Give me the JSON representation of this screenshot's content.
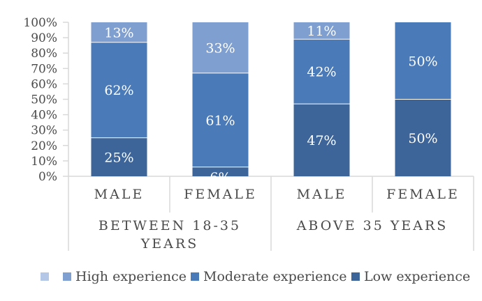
{
  "chart_data": {
    "type": "bar",
    "stacked": true,
    "ylim": [
      0,
      100
    ],
    "y_ticks": [
      "0%",
      "10%",
      "20%",
      "30%",
      "40%",
      "50%",
      "60%",
      "70%",
      "80%",
      "90%",
      "100%"
    ],
    "categories": [
      "MALE",
      "FEMALE",
      "MALE",
      "FEMALE"
    ],
    "groups": [
      {
        "label_lines": [
          "BETWEEN 18-35",
          "YEARS"
        ],
        "categories": [
          0,
          1
        ]
      },
      {
        "label_lines": [
          "ABOVE 35 YEARS"
        ],
        "categories": [
          2,
          3
        ]
      }
    ],
    "series": [
      {
        "name": "Low experience",
        "color": "#3d6599",
        "values": [
          25,
          6,
          47,
          50
        ]
      },
      {
        "name": "Moderate experience",
        "color": "#4a7ab8",
        "values": [
          62,
          61,
          42,
          50
        ]
      },
      {
        "name": "High experience",
        "color": "#7f9fd0",
        "values": [
          13,
          33,
          11,
          0
        ]
      }
    ],
    "value_labels": [
      [
        "25%",
        "6%",
        "47%",
        "50%"
      ],
      [
        "62%",
        "61%",
        "42%",
        "50%"
      ],
      [
        "13%",
        "33%",
        "11%",
        ""
      ]
    ],
    "legend": {
      "placement": "bottom",
      "items": [
        {
          "name": "",
          "color": "#b4c7e7"
        },
        {
          "name": "High experience",
          "color": "#7f9fd0"
        },
        {
          "name": "Moderate experience",
          "color": "#4a7ab8"
        },
        {
          "name": "Low experience",
          "color": "#3d6599"
        }
      ]
    },
    "grid": false,
    "axis_line_color": "#d9d9d9"
  }
}
